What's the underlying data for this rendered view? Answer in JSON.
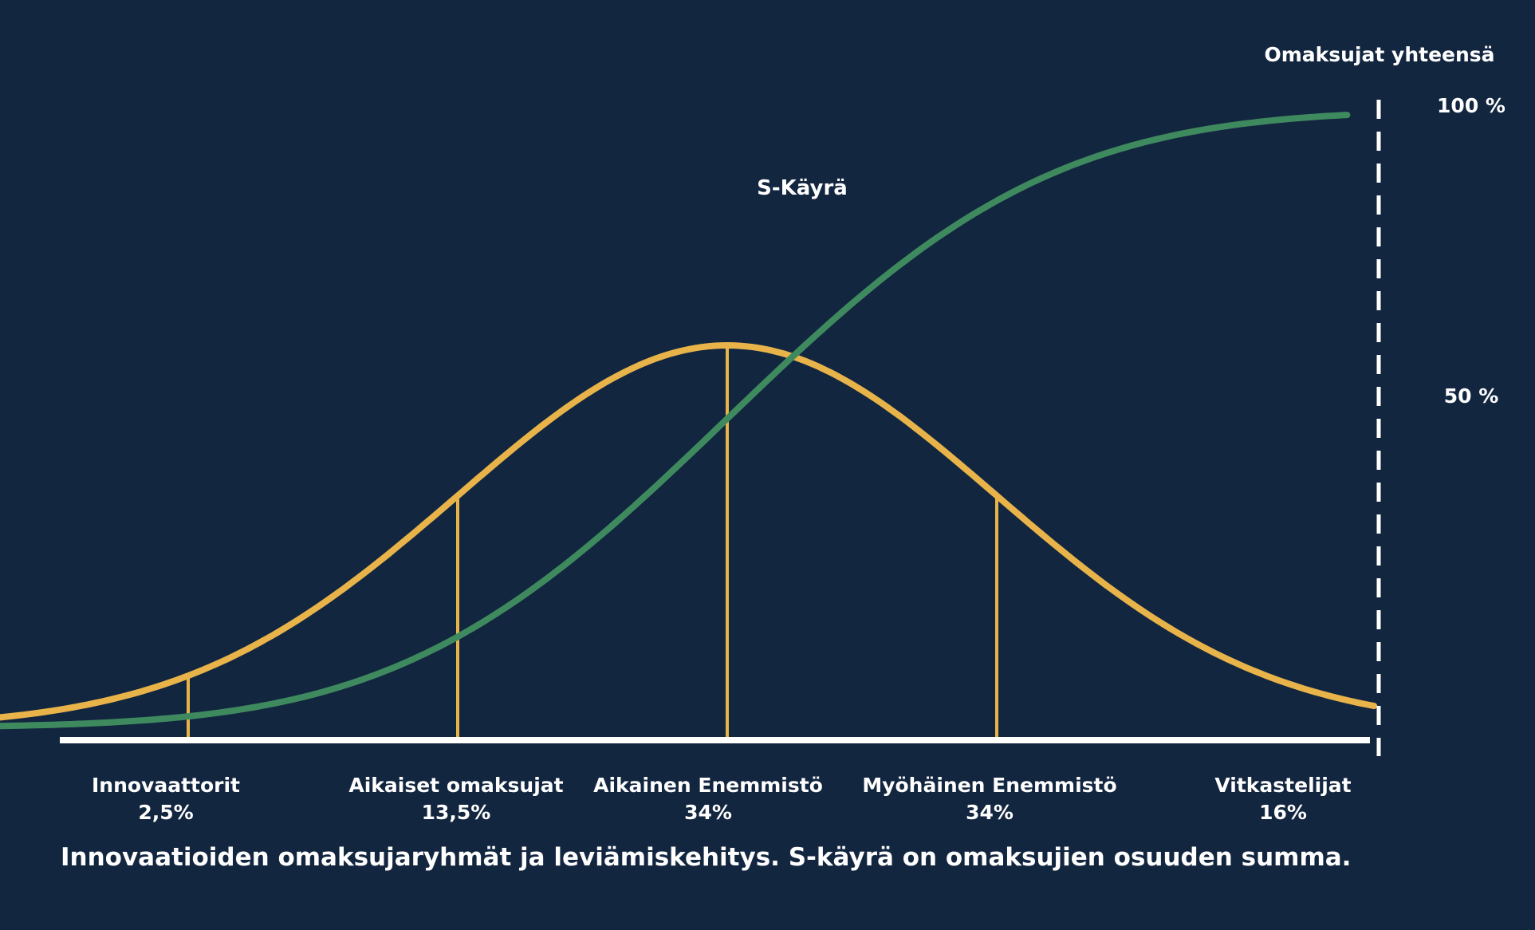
{
  "chart_data": {
    "type": "line",
    "title": "",
    "caption": "Innovaatioiden omaksujaryhmät ja leviämiskehitys. S-käyrä on omaksujien osuuden summa.",
    "xlabel": "",
    "ylabel": "Omaksujat yhteensä",
    "grid": false,
    "legend": "none",
    "y_ticks": [
      "100 %",
      "50 %"
    ],
    "y_ticks_values": [
      100,
      50
    ],
    "categories": [
      {
        "name": "Innovaattorit",
        "share_label": "2,5%",
        "share": 2.5
      },
      {
        "name": "Aikaiset omaksujat",
        "share_label": "13,5%",
        "share": 13.5
      },
      {
        "name": "Aikainen Enemmistö",
        "share_label": "34%",
        "share": 34
      },
      {
        "name": "Myöhäinen Enemmistö",
        "share_label": "34%",
        "share": 34
      },
      {
        "name": "Vitkastelijat",
        "share_label": "16%",
        "share": 16
      }
    ],
    "x_range_sd": [
      -3.3,
      2.3
    ],
    "segment_boundaries_sd": [
      -2,
      -1,
      0,
      1
    ],
    "series": [
      {
        "name": "",
        "kind": "distribution",
        "color": "#E8B44A"
      },
      {
        "name": "S-Käyrä",
        "kind": "cumulative",
        "color": "#3E8A5E"
      }
    ]
  },
  "colors": {
    "background": "#132640",
    "bell": "#E8B44A",
    "s_curve": "#3E8A5E",
    "axis": "#FFFFFF"
  }
}
